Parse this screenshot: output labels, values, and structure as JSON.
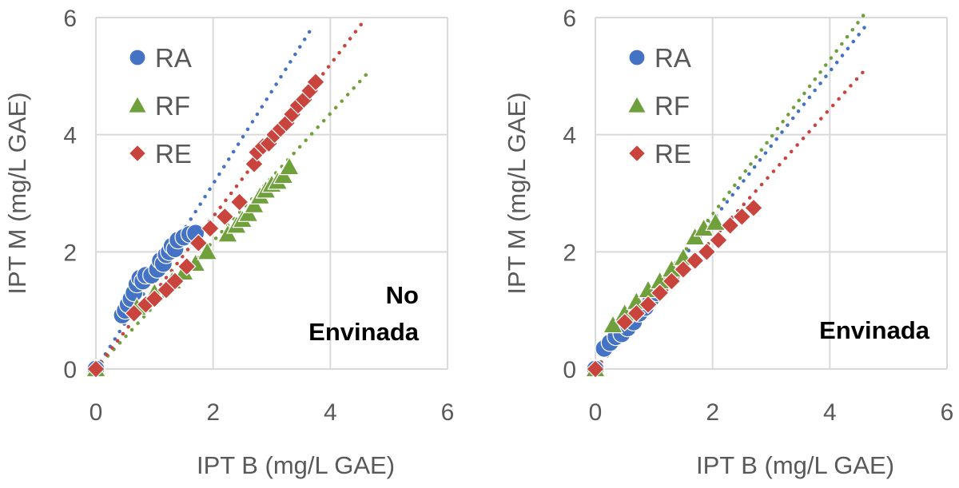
{
  "chart_data": [
    {
      "type": "scatter",
      "panel_label": "No Envinada",
      "panel_label_lines": [
        "No",
        "Envinada"
      ],
      "xlabel": "IPT B (mg/L GAE)",
      "ylabel": "IPT M (mg/L GAE)",
      "xlim": [
        0,
        6
      ],
      "ylim": [
        0,
        6
      ],
      "xticks": [
        "0",
        "2",
        "4",
        "6"
      ],
      "yticks": [
        "0",
        "2",
        "4",
        "6"
      ],
      "grid": true,
      "legend_position": "top-left",
      "series": [
        {
          "name": "RA",
          "marker": "circle",
          "color": "#4472c4",
          "x": [
            0,
            0.45,
            0.5,
            0.55,
            0.6,
            0.65,
            0.7,
            0.75,
            0.8,
            0.85,
            0.95,
            1.05,
            1.1,
            1.15,
            1.2,
            1.25,
            1.3,
            1.35,
            1.4,
            1.5,
            1.6,
            1.7
          ],
          "y": [
            0,
            0.92,
            1.0,
            1.1,
            1.2,
            1.3,
            1.45,
            1.55,
            1.5,
            1.6,
            1.6,
            1.7,
            1.85,
            1.8,
            1.95,
            2.0,
            2.1,
            2.05,
            2.2,
            2.25,
            2.3,
            2.32
          ],
          "trendline": {
            "slope": 1.58,
            "x_end": 3.7
          }
        },
        {
          "name": "RF",
          "marker": "triangle",
          "color": "#70a03c",
          "x": [
            0,
            0.7,
            1.0,
            1.3,
            1.5,
            1.7,
            1.9,
            2.25,
            2.4,
            2.5,
            2.6,
            2.7,
            2.8,
            2.9,
            3.0,
            3.1,
            3.2,
            3.3
          ],
          "y": [
            0,
            1.05,
            1.3,
            1.5,
            1.65,
            1.8,
            2.0,
            2.3,
            2.45,
            2.55,
            2.65,
            2.8,
            2.95,
            3.05,
            3.15,
            3.2,
            3.3,
            3.45
          ],
          "trendline": {
            "slope": 1.09,
            "x_end": 4.65
          }
        },
        {
          "name": "RE",
          "marker": "diamond",
          "color": "#c9443c",
          "x": [
            0,
            0.65,
            0.85,
            1.0,
            1.2,
            1.35,
            1.55,
            1.75,
            1.95,
            2.2,
            2.45,
            2.7,
            2.75,
            2.85,
            2.95,
            3.05,
            3.15,
            3.25,
            3.35,
            3.45,
            3.55,
            3.65,
            3.75
          ],
          "y": [
            0,
            0.95,
            1.1,
            1.2,
            1.35,
            1.5,
            1.75,
            2.15,
            2.4,
            2.6,
            2.85,
            3.5,
            3.7,
            3.8,
            3.85,
            4.0,
            4.1,
            4.2,
            4.35,
            4.5,
            4.6,
            4.75,
            4.9
          ],
          "trendline": {
            "slope": 1.3,
            "x_end": 4.6
          }
        }
      ]
    },
    {
      "type": "scatter",
      "panel_label": "Envinada",
      "panel_label_lines": [
        "Envinada"
      ],
      "xlabel": "IPT B (mg/L GAE)",
      "ylabel": "IPT M (mg/L GAE)",
      "xlim": [
        0,
        6
      ],
      "ylim": [
        0,
        6
      ],
      "xticks": [
        "0",
        "2",
        "4",
        "6"
      ],
      "yticks": [
        "0",
        "2",
        "4",
        "6"
      ],
      "grid": true,
      "legend_position": "top-left",
      "series": [
        {
          "name": "RA",
          "marker": "circle",
          "color": "#4472c4",
          "x": [
            0,
            0.15,
            0.25,
            0.35,
            0.45,
            0.55,
            0.65,
            0.75,
            0.85,
            0.95,
            1.05
          ],
          "y": [
            0,
            0.35,
            0.45,
            0.55,
            0.6,
            0.7,
            0.8,
            0.95,
            1.05,
            1.2,
            1.3
          ],
          "trendline": {
            "slope": 1.27,
            "x_end": 4.6
          }
        },
        {
          "name": "RF",
          "marker": "triangle",
          "color": "#70a03c",
          "x": [
            0,
            0.3,
            0.5,
            0.7,
            0.9,
            1.1,
            1.3,
            1.5,
            1.7,
            1.85,
            2.05
          ],
          "y": [
            0,
            0.75,
            0.95,
            1.15,
            1.35,
            1.5,
            1.7,
            1.9,
            2.25,
            2.4,
            2.5
          ],
          "trendline": {
            "slope": 1.32,
            "x_end": 4.6
          }
        },
        {
          "name": "RE",
          "marker": "diamond",
          "color": "#c9443c",
          "x": [
            0,
            0.5,
            0.7,
            0.9,
            1.1,
            1.3,
            1.5,
            1.7,
            1.9,
            2.1,
            2.3,
            2.5,
            2.7
          ],
          "y": [
            0,
            0.8,
            0.95,
            1.1,
            1.3,
            1.5,
            1.7,
            1.85,
            2.0,
            2.2,
            2.45,
            2.6,
            2.75
          ],
          "trendline": {
            "slope": 1.11,
            "x_end": 4.6
          }
        }
      ]
    }
  ]
}
